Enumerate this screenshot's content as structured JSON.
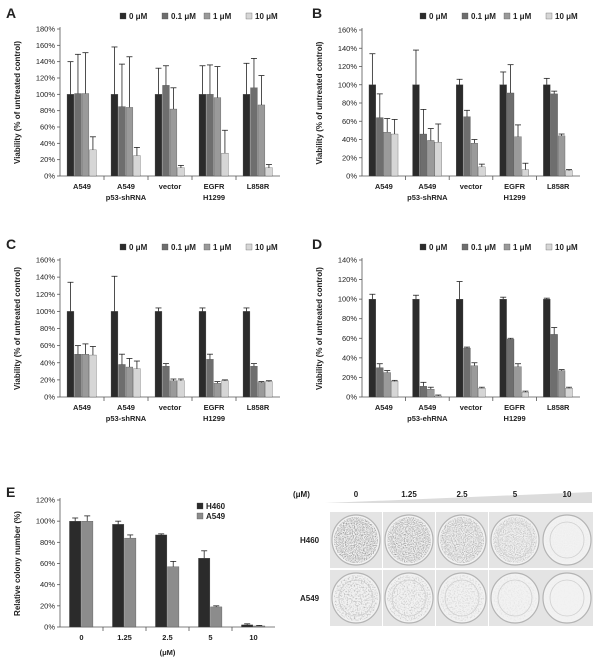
{
  "colors": {
    "series": [
      "#2b2b2b",
      "#6e6e6e",
      "#9a9a9a",
      "#d6d6d6"
    ],
    "e_series": [
      "#2b2b2b",
      "#8c8c8c"
    ]
  },
  "chart_data": [
    {
      "panel": "A",
      "type": "bar",
      "ylabel": "Viability (% of untreated control)",
      "yticks": [
        "0%",
        "20%",
        "40%",
        "60%",
        "80%",
        "100%",
        "120%",
        "140%",
        "160%",
        "180%"
      ],
      "ylim": [
        0,
        180
      ],
      "categories": [
        "A549",
        "A549",
        "vector",
        "EGFR",
        "L858R"
      ],
      "sublabels": [
        "",
        "p53-shRNA",
        "",
        "H1299",
        ""
      ],
      "legend": [
        "0 μM",
        "0.1 μM",
        "1 μM",
        "10 μM"
      ],
      "series": [
        {
          "name": "0 μM",
          "values": [
            100,
            100,
            100,
            100,
            100
          ],
          "errors": [
            40,
            58,
            32,
            35,
            38
          ]
        },
        {
          "name": "0.1 μM",
          "values": [
            101,
            85,
            111,
            100,
            108
          ],
          "errors": [
            48,
            52,
            24,
            36,
            36
          ]
        },
        {
          "name": "1 μM",
          "values": [
            101,
            84,
            82,
            96,
            87
          ],
          "errors": [
            50,
            62,
            26,
            38,
            36
          ]
        },
        {
          "name": "10 μM",
          "values": [
            32,
            25,
            10,
            28,
            10
          ],
          "errors": [
            16,
            10,
            3,
            28,
            4
          ]
        }
      ]
    },
    {
      "panel": "B",
      "type": "bar",
      "ylabel": "Viability (% of untreated control)",
      "yticks": [
        "0%",
        "20%",
        "40%",
        "60%",
        "80%",
        "100%",
        "120%",
        "140%",
        "160%"
      ],
      "ylim": [
        0,
        160
      ],
      "categories": [
        "A549",
        "A549",
        "vector",
        "EGFR",
        "L858R"
      ],
      "sublabels": [
        "",
        "p53-shRNA",
        "",
        "H1299",
        ""
      ],
      "legend": [
        "0 μM",
        "0.1 μM",
        "1 μM",
        "10 μM"
      ],
      "series": [
        {
          "name": "0 μM",
          "values": [
            100,
            100,
            100,
            100,
            100
          ],
          "errors": [
            34,
            38,
            6,
            14,
            7
          ]
        },
        {
          "name": "0.1 μM",
          "values": [
            64,
            46,
            65,
            91,
            90
          ],
          "errors": [
            26,
            27,
            7,
            31,
            3
          ]
        },
        {
          "name": "1 μM",
          "values": [
            48,
            39,
            36,
            43,
            44
          ],
          "errors": [
            15,
            13,
            4,
            13,
            2
          ]
        },
        {
          "name": "10 μM",
          "values": [
            46,
            37,
            10,
            7,
            6
          ],
          "errors": [
            16,
            20,
            3,
            7,
            1
          ]
        }
      ]
    },
    {
      "panel": "C",
      "type": "bar",
      "ylabel": "Viability (% of untreated control)",
      "yticks": [
        "0%",
        "20%",
        "40%",
        "60%",
        "80%",
        "100%",
        "120%",
        "140%",
        "160%"
      ],
      "ylim": [
        0,
        160
      ],
      "categories": [
        "A549",
        "A549",
        "vector",
        "EGFR",
        "L858R"
      ],
      "sublabels": [
        "",
        "p53-shRNA",
        "",
        "H1299",
        ""
      ],
      "legend": [
        "0 μM",
        "0.1 μM",
        "1 μM",
        "10 μM"
      ],
      "series": [
        {
          "name": "0 μM",
          "values": [
            100,
            100,
            100,
            100,
            100
          ],
          "errors": [
            34,
            41,
            4,
            4,
            4
          ]
        },
        {
          "name": "0.1 μM",
          "values": [
            50,
            38,
            36,
            44,
            36
          ],
          "errors": [
            10,
            12,
            3,
            6,
            3
          ]
        },
        {
          "name": "1 μM",
          "values": [
            50,
            35,
            19,
            16,
            17
          ],
          "errors": [
            12,
            10,
            2,
            2,
            1
          ]
        },
        {
          "name": "10 μM",
          "values": [
            49,
            33,
            19,
            19,
            18
          ],
          "errors": [
            10,
            9,
            2,
            1,
            1
          ]
        }
      ]
    },
    {
      "panel": "D",
      "type": "bar",
      "ylabel": "Viability (% of untreated control)",
      "yticks": [
        "0%",
        "20%",
        "40%",
        "60%",
        "80%",
        "100%",
        "120%",
        "140%"
      ],
      "ylim": [
        0,
        140
      ],
      "categories": [
        "A549",
        "A549",
        "vector",
        "EGFR",
        "L858R"
      ],
      "sublabels": [
        "",
        "p53-ehRNA",
        "",
        "H1299",
        ""
      ],
      "legend": [
        "0 μM",
        "0.1 μM",
        "1 μM",
        "10 μM"
      ],
      "series": [
        {
          "name": "0 μM",
          "values": [
            100,
            100,
            100,
            100,
            100
          ],
          "errors": [
            5,
            4,
            18,
            2,
            1
          ]
        },
        {
          "name": "0.1 μM",
          "values": [
            30,
            11,
            50,
            59,
            64
          ],
          "errors": [
            4,
            4,
            1,
            1,
            7
          ]
        },
        {
          "name": "1 μM",
          "values": [
            25,
            8,
            32,
            31,
            27
          ],
          "errors": [
            2,
            2,
            3,
            3,
            1
          ]
        },
        {
          "name": "10 μM",
          "values": [
            16,
            1,
            9,
            5,
            9
          ],
          "errors": [
            1,
            1,
            1,
            1,
            1
          ]
        }
      ]
    },
    {
      "panel": "E",
      "type": "bar",
      "ylabel": "Relative colony number (%)",
      "xlabel": "(μM)",
      "yticks": [
        "0%",
        "20%",
        "40%",
        "60%",
        "80%",
        "100%",
        "120%"
      ],
      "ylim": [
        0,
        120
      ],
      "categories": [
        "0",
        "1.25",
        "2.5",
        "5",
        "10"
      ],
      "legend": [
        "H460",
        "A549"
      ],
      "series": [
        {
          "name": "H460",
          "values": [
            100,
            97,
            87,
            65,
            2
          ],
          "errors": [
            3,
            3,
            1,
            7,
            1
          ]
        },
        {
          "name": "A549",
          "values": [
            100,
            84,
            57,
            19,
            1
          ],
          "errors": [
            5,
            3,
            5,
            1,
            0.5
          ]
        }
      ]
    }
  ],
  "photo_panel": {
    "unit": "(μM)",
    "doses": [
      "0",
      "1.25",
      "2.5",
      "5",
      "10"
    ],
    "rows": [
      "H460",
      "A549"
    ]
  }
}
